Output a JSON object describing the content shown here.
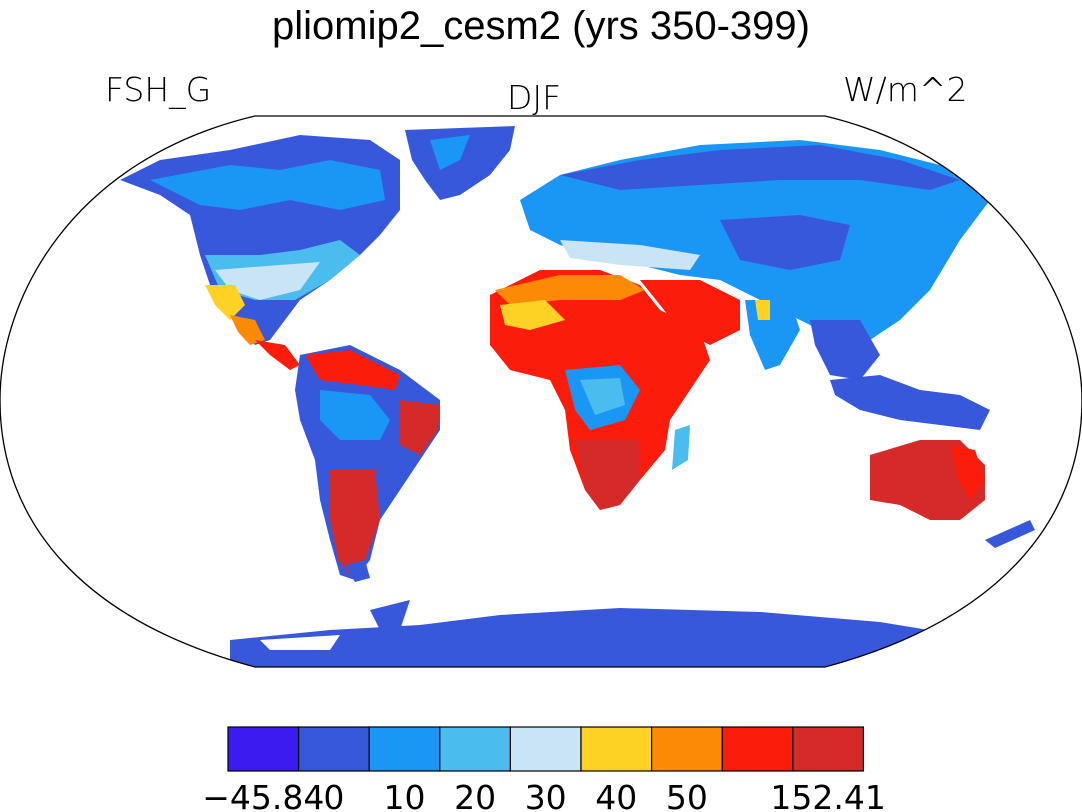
{
  "title": "pliomip2_cesm2 (yrs 350-399)",
  "left_label": "FSH_G",
  "center_label": "DJF",
  "right_label": "W/m^2",
  "colorbar": {
    "colors": [
      "#3b1bf0",
      "#3858dc",
      "#1a96f5",
      "#4bbcee",
      "#c9e5f5",
      "#fdd225",
      "#fd8a05",
      "#fb1c0c",
      "#d42a2a"
    ],
    "labels": [
      "−45.84",
      "0",
      "10",
      "20",
      "30",
      "40",
      "50",
      "",
      "152.41"
    ]
  }
}
